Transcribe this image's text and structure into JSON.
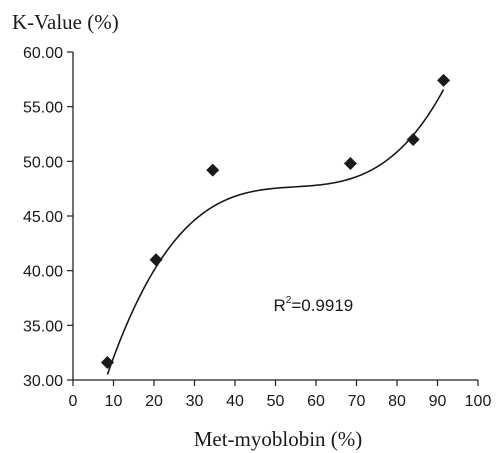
{
  "chart_data": {
    "type": "scatter",
    "ylabel": "K-Value (%)",
    "xlabel": "Met-myoblobin (%)",
    "xlim": [
      0,
      100
    ],
    "ylim": [
      30,
      60
    ],
    "x_ticks": [
      "0",
      "10",
      "20",
      "30",
      "40",
      "50",
      "60",
      "70",
      "80",
      "90",
      "100"
    ],
    "y_ticks": [
      "30.00",
      "35.00",
      "40.00",
      "45.00",
      "50.00",
      "55.00",
      "60.00"
    ],
    "points": [
      {
        "x": 8.5,
        "y": 31.6
      },
      {
        "x": 20.5,
        "y": 41.0
      },
      {
        "x": 34.5,
        "y": 49.2
      },
      {
        "x": 68.5,
        "y": 49.8
      },
      {
        "x": 84.0,
        "y": 52.0
      },
      {
        "x": 91.5,
        "y": 57.4
      }
    ],
    "trendline": {
      "type": "polynomial",
      "degree": 3,
      "coefficients": [
        19.7,
        1.4855,
        -0.0267,
        0.0001625
      ],
      "x_range": [
        8.5,
        91.5
      ]
    },
    "r2_label": {
      "prefix": "R",
      "superscript": "2",
      "value": "=0.9919"
    },
    "grid": false,
    "legend": "none",
    "colors": {
      "axis": "#222222",
      "marker": "#1a1a1a",
      "line": "#1a1a1a",
      "text": "#1a1a1a"
    }
  }
}
